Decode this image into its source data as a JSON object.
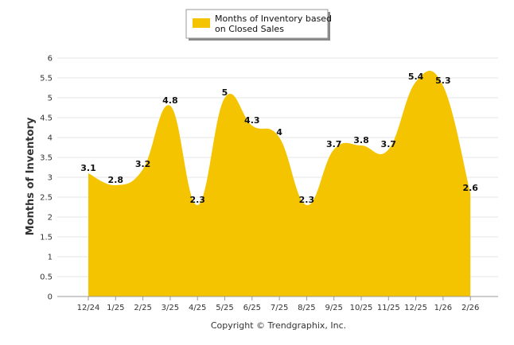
{
  "chart_data": {
    "type": "area",
    "title": "",
    "xlabel": "",
    "ylabel": "Months of Inventory",
    "ylim": [
      0,
      6
    ],
    "ytick_step": 0.5,
    "grid": true,
    "legend_position": "top-center",
    "categories": [
      "12/24",
      "1/25",
      "2/25",
      "3/25",
      "4/25",
      "5/25",
      "6/25",
      "7/25",
      "8/25",
      "9/25",
      "10/25",
      "11/25",
      "12/25",
      "1/26",
      "2/26"
    ],
    "series": [
      {
        "name": "Months of Inventory based on Closed Sales",
        "values": [
          3.1,
          2.8,
          3.2,
          4.8,
          2.3,
          5,
          4.3,
          4,
          2.3,
          3.7,
          3.8,
          3.7,
          5.4,
          5.3,
          2.6
        ],
        "labels": [
          "3.1",
          "2.8",
          "3.2",
          "4.8",
          "2.3",
          "5",
          "4.3",
          "4",
          "2.3",
          "3.7",
          "3.8",
          "3.7",
          "5.4",
          "5.3",
          "2.6"
        ],
        "color": "#f5c400"
      }
    ],
    "legend_lines": [
      "Months of Inventory based",
      "on Closed Sales"
    ],
    "credit": "Copyright © Trendgraphix, Inc."
  }
}
